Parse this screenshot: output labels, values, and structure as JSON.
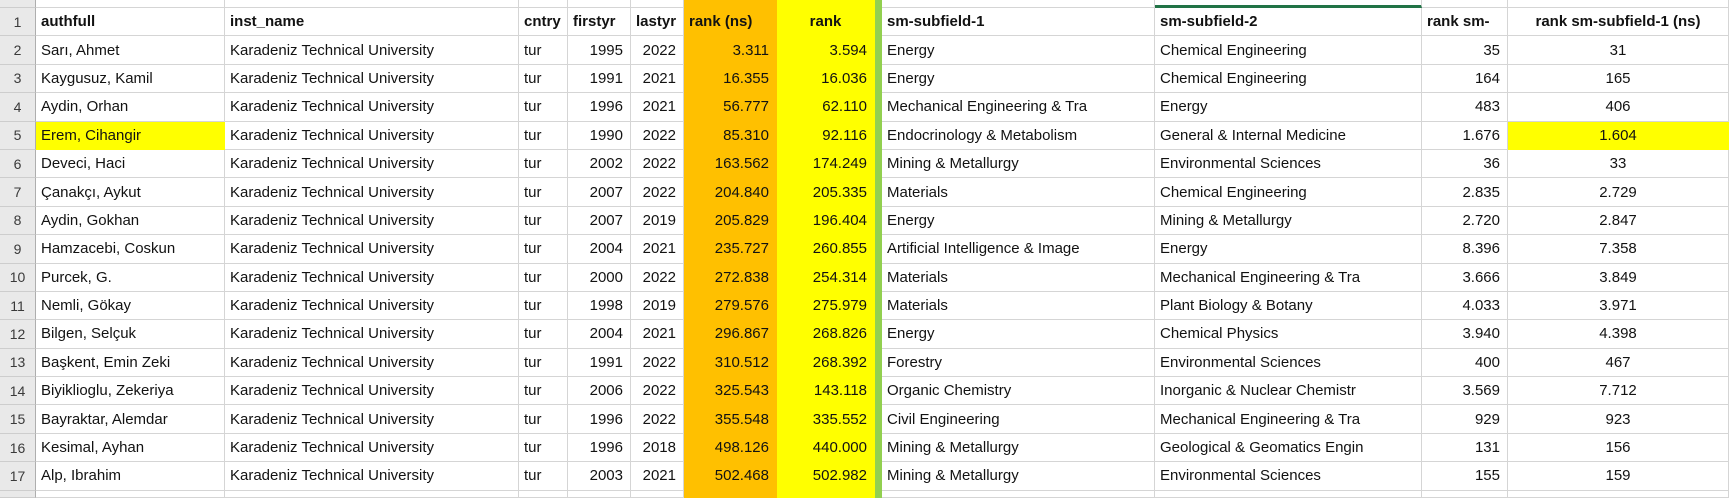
{
  "colors": {
    "rank_ns_fill": "#FFC000",
    "rank_fill": "#FFFF00",
    "highlight_fill": "#FFFF00",
    "divider_fill": "#92D050",
    "selection_border": "#217346"
  },
  "header_row": {
    "num": "1",
    "authfull": "authfull",
    "inst_name": "inst_name",
    "cntry": "cntry",
    "firstyr": "firstyr",
    "lastyr": "lastyr",
    "rank_ns": "rank (ns)",
    "rank": "rank",
    "sm1": "sm-subfield-1",
    "sm2": "sm-subfield-2",
    "rank_sm": "rank sm-",
    "rank_sm1_ns": "rank sm-subfield-1 (ns)"
  },
  "rows": [
    {
      "num": "2",
      "authfull": "Sarı, Ahmet",
      "inst_name": "Karadeniz Technical University",
      "cntry": "tur",
      "firstyr": "1995",
      "lastyr": "2022",
      "rank_ns": "3.311",
      "rank": "3.594",
      "sm1": "Energy",
      "sm2": "Chemical Engineering",
      "rank_sm": "35",
      "rank_sm1_ns": "31",
      "hl_auth": false,
      "hl_last": false
    },
    {
      "num": "3",
      "authfull": "Kaygusuz, Kamil",
      "inst_name": "Karadeniz Technical University",
      "cntry": "tur",
      "firstyr": "1991",
      "lastyr": "2021",
      "rank_ns": "16.355",
      "rank": "16.036",
      "sm1": "Energy",
      "sm2": "Chemical Engineering",
      "rank_sm": "164",
      "rank_sm1_ns": "165",
      "hl_auth": false,
      "hl_last": false
    },
    {
      "num": "4",
      "authfull": "Aydin, Orhan",
      "inst_name": "Karadeniz Technical University",
      "cntry": "tur",
      "firstyr": "1996",
      "lastyr": "2021",
      "rank_ns": "56.777",
      "rank": "62.110",
      "sm1": "Mechanical Engineering & Tra",
      "sm2": "Energy",
      "rank_sm": "483",
      "rank_sm1_ns": "406",
      "hl_auth": false,
      "hl_last": false
    },
    {
      "num": "5",
      "authfull": "Erem, Cihangir",
      "inst_name": "Karadeniz Technical University",
      "cntry": "tur",
      "firstyr": "1990",
      "lastyr": "2022",
      "rank_ns": "85.310",
      "rank": "92.116",
      "sm1": "Endocrinology & Metabolism",
      "sm2": "General & Internal Medicine",
      "rank_sm": "1.676",
      "rank_sm1_ns": "1.604",
      "hl_auth": true,
      "hl_last": true
    },
    {
      "num": "6",
      "authfull": "Deveci, Haci",
      "inst_name": "Karadeniz Technical University",
      "cntry": "tur",
      "firstyr": "2002",
      "lastyr": "2022",
      "rank_ns": "163.562",
      "rank": "174.249",
      "sm1": "Mining & Metallurgy",
      "sm2": "Environmental Sciences",
      "rank_sm": "36",
      "rank_sm1_ns": "33",
      "hl_auth": false,
      "hl_last": false
    },
    {
      "num": "7",
      "authfull": "Çanakçı, Aykut",
      "inst_name": "Karadeniz Technical University",
      "cntry": "tur",
      "firstyr": "2007",
      "lastyr": "2022",
      "rank_ns": "204.840",
      "rank": "205.335",
      "sm1": "Materials",
      "sm2": "Chemical Engineering",
      "rank_sm": "2.835",
      "rank_sm1_ns": "2.729",
      "hl_auth": false,
      "hl_last": false
    },
    {
      "num": "8",
      "authfull": "Aydin, Gokhan",
      "inst_name": "Karadeniz Technical University",
      "cntry": "tur",
      "firstyr": "2007",
      "lastyr": "2019",
      "rank_ns": "205.829",
      "rank": "196.404",
      "sm1": "Energy",
      "sm2": "Mining & Metallurgy",
      "rank_sm": "2.720",
      "rank_sm1_ns": "2.847",
      "hl_auth": false,
      "hl_last": false
    },
    {
      "num": "9",
      "authfull": "Hamzacebi, Coskun",
      "inst_name": "Karadeniz Technical University",
      "cntry": "tur",
      "firstyr": "2004",
      "lastyr": "2021",
      "rank_ns": "235.727",
      "rank": "260.855",
      "sm1": "Artificial Intelligence & Image",
      "sm2": "Energy",
      "rank_sm": "8.396",
      "rank_sm1_ns": "7.358",
      "hl_auth": false,
      "hl_last": false
    },
    {
      "num": "10",
      "authfull": "Purcek, G.",
      "inst_name": "Karadeniz Technical University",
      "cntry": "tur",
      "firstyr": "2000",
      "lastyr": "2022",
      "rank_ns": "272.838",
      "rank": "254.314",
      "sm1": "Materials",
      "sm2": "Mechanical Engineering & Tra",
      "rank_sm": "3.666",
      "rank_sm1_ns": "3.849",
      "hl_auth": false,
      "hl_last": false
    },
    {
      "num": "11",
      "authfull": "Nemli, Gökay",
      "inst_name": "Karadeniz Technical University",
      "cntry": "tur",
      "firstyr": "1998",
      "lastyr": "2019",
      "rank_ns": "279.576",
      "rank": "275.979",
      "sm1": "Materials",
      "sm2": "Plant Biology & Botany",
      "rank_sm": "4.033",
      "rank_sm1_ns": "3.971",
      "hl_auth": false,
      "hl_last": false
    },
    {
      "num": "12",
      "authfull": "Bilgen, Selçuk",
      "inst_name": "Karadeniz Technical University",
      "cntry": "tur",
      "firstyr": "2004",
      "lastyr": "2021",
      "rank_ns": "296.867",
      "rank": "268.826",
      "sm1": "Energy",
      "sm2": "Chemical Physics",
      "rank_sm": "3.940",
      "rank_sm1_ns": "4.398",
      "hl_auth": false,
      "hl_last": false
    },
    {
      "num": "13",
      "authfull": "Başkent, Emin Zeki",
      "inst_name": "Karadeniz Technical University",
      "cntry": "tur",
      "firstyr": "1991",
      "lastyr": "2022",
      "rank_ns": "310.512",
      "rank": "268.392",
      "sm1": "Forestry",
      "sm2": "Environmental Sciences",
      "rank_sm": "400",
      "rank_sm1_ns": "467",
      "hl_auth": false,
      "hl_last": false
    },
    {
      "num": "14",
      "authfull": "Biyiklioglu, Zekeriya",
      "inst_name": "Karadeniz Technical University",
      "cntry": "tur",
      "firstyr": "2006",
      "lastyr": "2022",
      "rank_ns": "325.543",
      "rank": "143.118",
      "sm1": "Organic Chemistry",
      "sm2": "Inorganic & Nuclear Chemistr",
      "rank_sm": "3.569",
      "rank_sm1_ns": "7.712",
      "hl_auth": false,
      "hl_last": false
    },
    {
      "num": "15",
      "authfull": "Bayraktar, Alemdar",
      "inst_name": "Karadeniz Technical University",
      "cntry": "tur",
      "firstyr": "1996",
      "lastyr": "2022",
      "rank_ns": "355.548",
      "rank": "335.552",
      "sm1": "Civil Engineering",
      "sm2": "Mechanical Engineering & Tra",
      "rank_sm": "929",
      "rank_sm1_ns": "923",
      "hl_auth": false,
      "hl_last": false
    },
    {
      "num": "16",
      "authfull": "Kesimal, Ayhan",
      "inst_name": "Karadeniz Technical University",
      "cntry": "tur",
      "firstyr": "1996",
      "lastyr": "2018",
      "rank_ns": "498.126",
      "rank": "440.000",
      "sm1": "Mining & Metallurgy",
      "sm2": "Geological & Geomatics Engin",
      "rank_sm": "131",
      "rank_sm1_ns": "156",
      "hl_auth": false,
      "hl_last": false
    },
    {
      "num": "17",
      "authfull": "Alp, Ibrahim",
      "inst_name": "Karadeniz Technical University",
      "cntry": "tur",
      "firstyr": "2003",
      "lastyr": "2021",
      "rank_ns": "502.468",
      "rank": "502.982",
      "sm1": "Mining & Metallurgy",
      "sm2": "Environmental Sciences",
      "rank_sm": "155",
      "rank_sm1_ns": "159",
      "hl_auth": false,
      "hl_last": false
    }
  ]
}
